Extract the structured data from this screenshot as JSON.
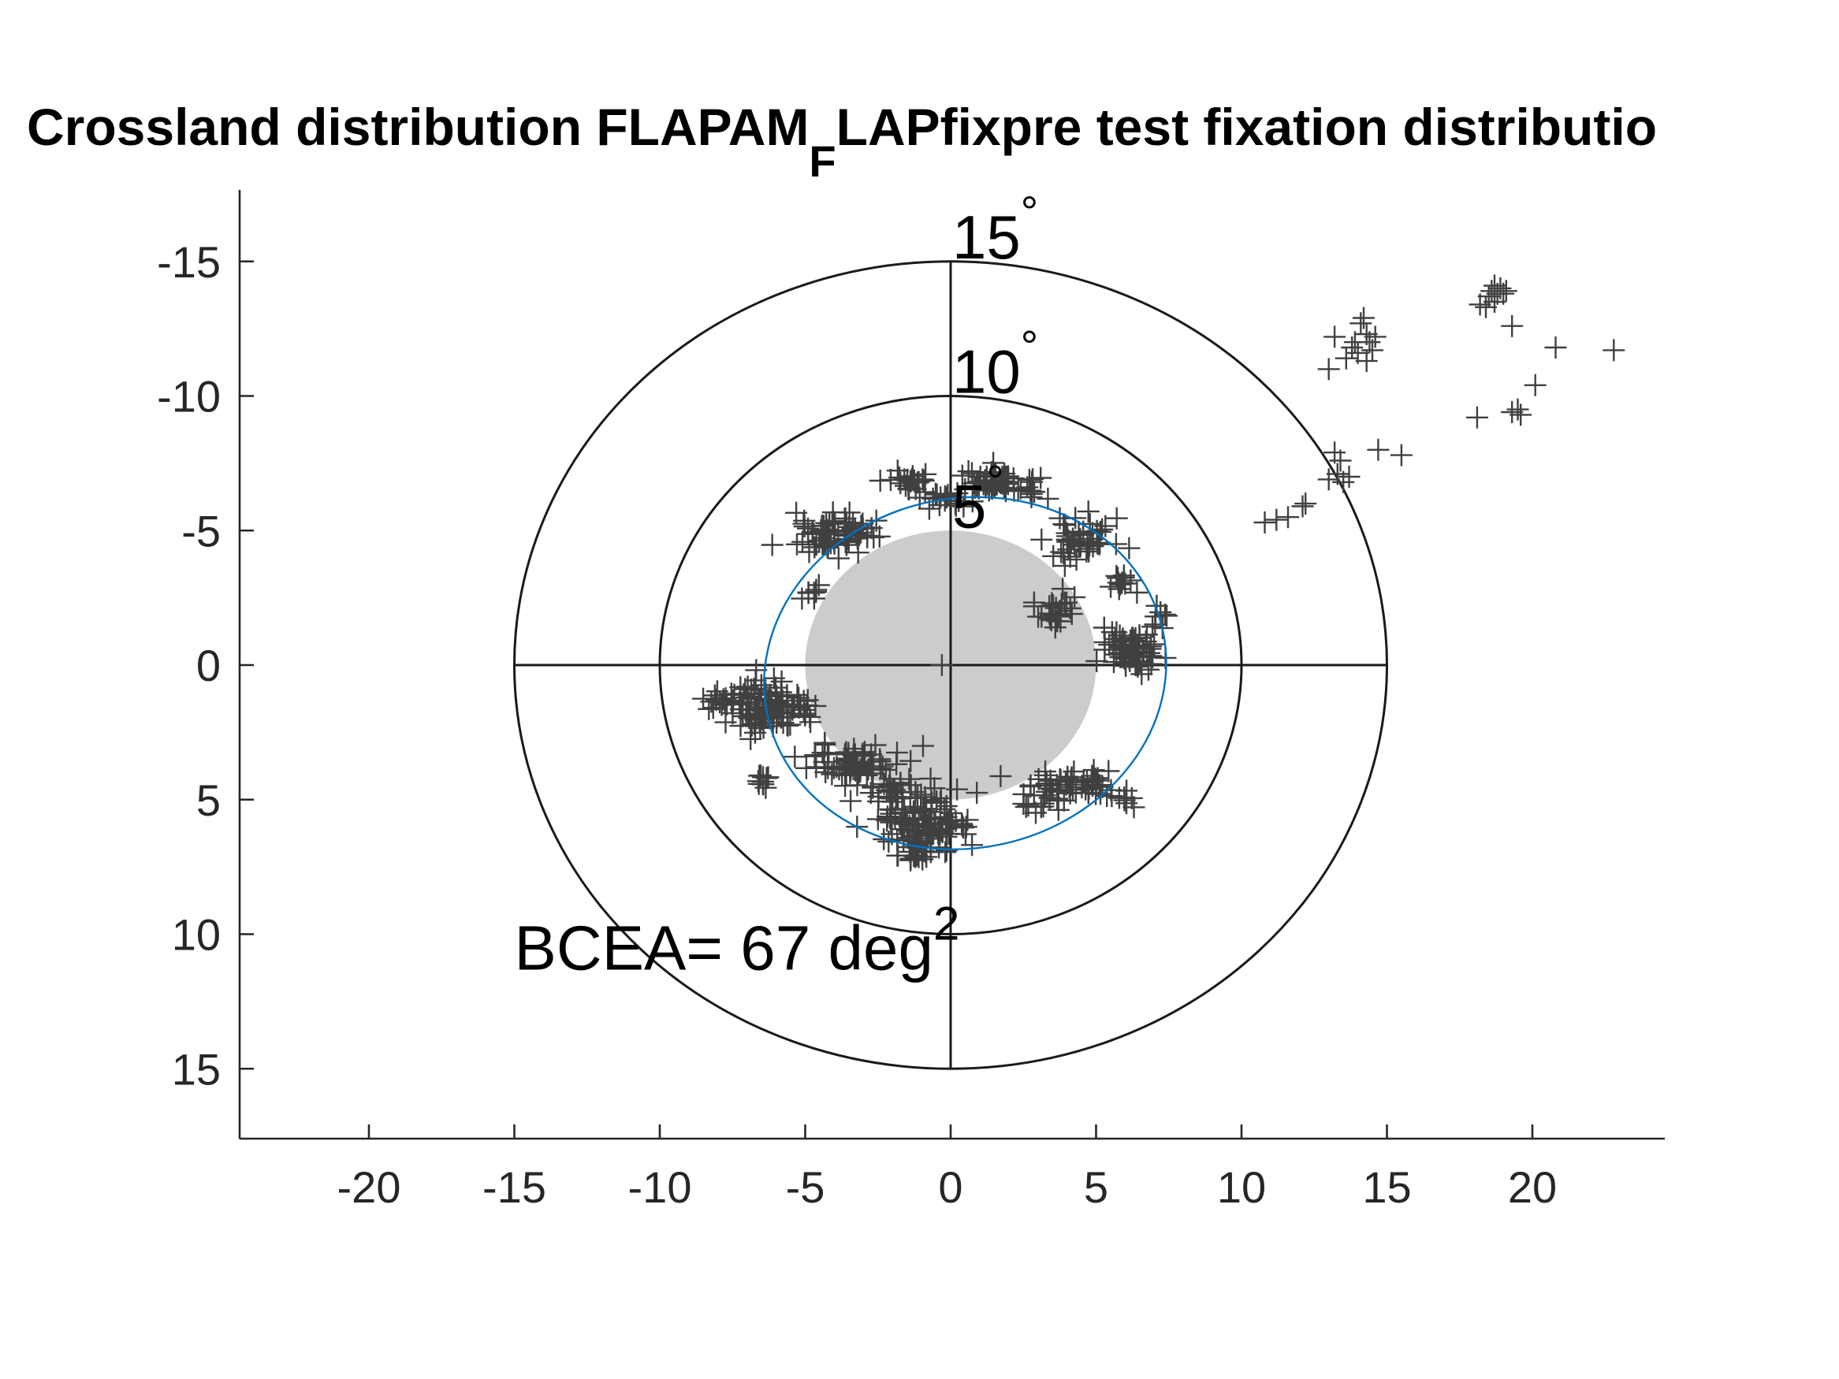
{
  "chart_data": {
    "type": "scatter",
    "title": {
      "main": "Crossland distribution FLAPAM",
      "subscript": "F",
      "rest": "LAPfixpre test fixation distributio"
    },
    "xlabel": "",
    "ylabel": "",
    "xlim": [
      -24.5,
      24.5
    ],
    "ylim": [
      -17.6,
      17.6
    ],
    "y_reversed": true,
    "x_ticks": [
      "-20",
      "-15",
      "-10",
      "-5",
      "0",
      "5",
      "10",
      "15",
      "20"
    ],
    "x_tick_values": [
      -20,
      -15,
      -10,
      -5,
      0,
      5,
      10,
      15,
      20
    ],
    "y_ticks": [
      "-15",
      "-10",
      "-5",
      "0",
      "5",
      "10",
      "15"
    ],
    "y_tick_values": [
      -15,
      -10,
      -5,
      0,
      5,
      10,
      15
    ],
    "grid": false,
    "legend": "none",
    "rings": [
      {
        "radius": 10,
        "label": "10",
        "degree": "°"
      },
      {
        "radius": 15,
        "label": "15",
        "degree": "°"
      }
    ],
    "inner_marker": {
      "radius": 5,
      "label": "5",
      "degree": "°",
      "color": "#cccccc"
    },
    "crosshair_extent": 15,
    "ellipse": {
      "cx": 0.5,
      "cy": 0.3,
      "rx": 6.95,
      "ry": 6.5,
      "angle": -12,
      "color": "#0072bd"
    },
    "bcea": {
      "text": "BCEA= 67 deg",
      "superscript": "2",
      "x": -15,
      "y": 10.5
    },
    "marker_color": "#404040",
    "clusters": [
      {
        "x": -6.5,
        "y": 1.5,
        "sx": 0.6,
        "sy": 0.5,
        "n": 90
      },
      {
        "x": -7.9,
        "y": 1.2,
        "sx": 0.35,
        "sy": 0.2,
        "n": 12
      },
      {
        "x": -5.5,
        "y": 1.6,
        "sx": 0.45,
        "sy": 0.35,
        "n": 25
      },
      {
        "x": -3.4,
        "y": 3.7,
        "sx": 0.9,
        "sy": 0.35,
        "n": 70
      },
      {
        "x": -2.0,
        "y": 4.7,
        "sx": 0.8,
        "sy": 0.3,
        "n": 30
      },
      {
        "x": -6.4,
        "y": 4.3,
        "sx": 0.25,
        "sy": 0.15,
        "n": 10
      },
      {
        "x": -0.9,
        "y": 5.9,
        "sx": 0.8,
        "sy": 0.45,
        "n": 110
      },
      {
        "x": -1.2,
        "y": 7.1,
        "sx": 0.3,
        "sy": 0.3,
        "n": 15
      },
      {
        "x": 4.1,
        "y": 4.4,
        "sx": 0.9,
        "sy": 0.3,
        "n": 60
      },
      {
        "x": 6.0,
        "y": 5.0,
        "sx": 0.2,
        "sy": 0.2,
        "n": 8
      },
      {
        "x": 2.8,
        "y": 5.0,
        "sx": 0.4,
        "sy": 0.2,
        "n": 8
      },
      {
        "x": 6.3,
        "y": -0.5,
        "sx": 0.45,
        "sy": 0.35,
        "n": 80
      },
      {
        "x": 7.2,
        "y": -1.6,
        "sx": 0.2,
        "sy": 0.15,
        "n": 8
      },
      {
        "x": 4.4,
        "y": -4.7,
        "sx": 0.55,
        "sy": 0.45,
        "n": 45
      },
      {
        "x": 5.8,
        "y": -3.1,
        "sx": 0.3,
        "sy": 0.2,
        "n": 12
      },
      {
        "x": 3.6,
        "y": -2.2,
        "sx": 0.35,
        "sy": 0.35,
        "n": 25
      },
      {
        "x": 1.6,
        "y": -6.8,
        "sx": 0.7,
        "sy": 0.25,
        "n": 60
      },
      {
        "x": -1.4,
        "y": -6.9,
        "sx": 0.35,
        "sy": 0.2,
        "n": 22
      },
      {
        "x": -0.2,
        "y": -6.1,
        "sx": 0.4,
        "sy": 0.2,
        "n": 18
      },
      {
        "x": 2.8,
        "y": -6.3,
        "sx": 0.25,
        "sy": 0.15,
        "n": 8
      },
      {
        "x": -4.3,
        "y": -4.9,
        "sx": 0.7,
        "sy": 0.4,
        "n": 60
      },
      {
        "x": -4.8,
        "y": -2.7,
        "sx": 0.25,
        "sy": 0.15,
        "n": 8
      },
      {
        "x": -3.0,
        "y": -5.0,
        "sx": 0.3,
        "sy": 0.2,
        "n": 10
      }
    ],
    "points": [
      [
        -0.3,
        0
      ],
      [
        3.6,
        -1.4
      ],
      [
        4.2,
        -4.7
      ],
      [
        3.8,
        -4.2
      ],
      [
        4.7,
        -4.6
      ],
      [
        10.8,
        -5.3
      ],
      [
        11.2,
        -5.4
      ],
      [
        11.6,
        -5.5
      ],
      [
        12.1,
        -5.9
      ],
      [
        12.2,
        -6.0
      ],
      [
        13.0,
        -6.9
      ],
      [
        13.3,
        -7.1
      ],
      [
        13.5,
        -6.8
      ],
      [
        13.4,
        -7.6
      ],
      [
        13.2,
        -7.9
      ],
      [
        13.7,
        -7.0
      ],
      [
        14.7,
        -8.0
      ],
      [
        15.5,
        -7.8
      ],
      [
        13.0,
        -11.0
      ],
      [
        13.2,
        -12.2
      ],
      [
        13.6,
        -11.4
      ],
      [
        13.8,
        -11.8
      ],
      [
        14.0,
        -11.6
      ],
      [
        14.1,
        -12.7
      ],
      [
        14.3,
        -12.3
      ],
      [
        14.4,
        -12.0
      ],
      [
        14.5,
        -11.7
      ],
      [
        14.2,
        -12.9
      ],
      [
        14.6,
        -12.2
      ],
      [
        13.9,
        -12.0
      ],
      [
        14.3,
        -11.3
      ],
      [
        18.1,
        -9.2
      ],
      [
        19.5,
        -9.5
      ],
      [
        19.6,
        -9.3
      ],
      [
        19.3,
        -9.4
      ],
      [
        20.1,
        -10.4
      ],
      [
        20.8,
        -11.8
      ],
      [
        22.8,
        -11.7
      ],
      [
        18.2,
        -13.4
      ],
      [
        18.4,
        -13.3
      ],
      [
        18.5,
        -13.7
      ],
      [
        18.6,
        -13.9
      ],
      [
        18.7,
        -13.5
      ],
      [
        18.8,
        -13.8
      ],
      [
        18.9,
        -14.0
      ],
      [
        19.0,
        -13.8
      ],
      [
        19.1,
        -13.9
      ],
      [
        18.7,
        -14.1
      ],
      [
        19.3,
        -12.6
      ]
    ]
  }
}
